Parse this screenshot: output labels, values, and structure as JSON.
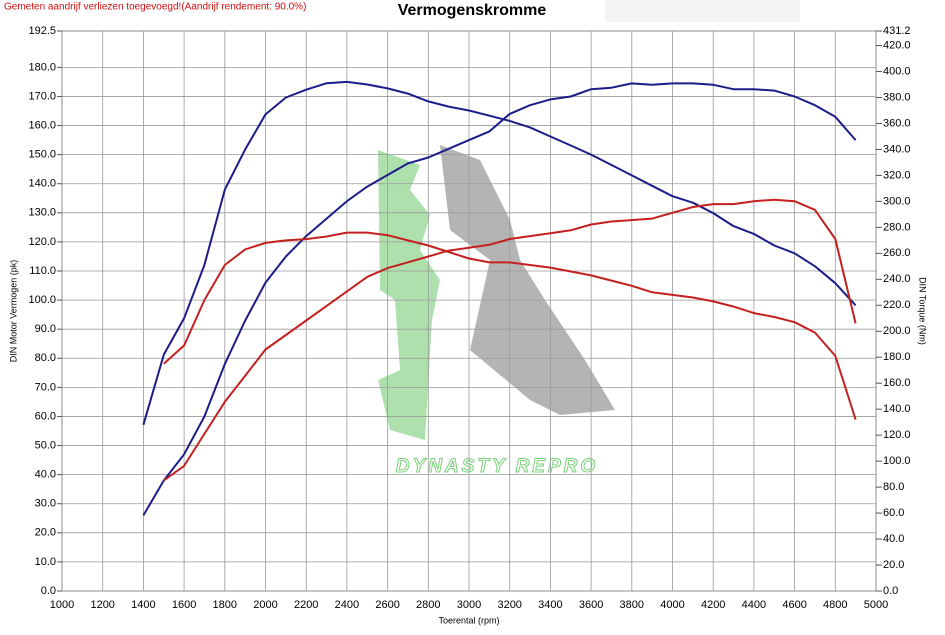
{
  "chart_data": {
    "type": "line",
    "title": "Vermogenskromme",
    "subtitle": "Gemeten aandrijf verliezen toegevoegd!(Aandrijf rendement: 90.0%)",
    "watermark": "DYNASTY REPRO",
    "x_label": "Toerental (rpm)",
    "y_label": "DIN Motor Vermogen (pk)",
    "y2_label": "DIN Torque (Nm)",
    "grid": true,
    "x": [
      1400,
      1500,
      1600,
      1700,
      1800,
      1900,
      2000,
      2100,
      2200,
      2300,
      2400,
      2500,
      2600,
      2700,
      2800,
      2900,
      3000,
      3100,
      3200,
      3300,
      3400,
      3500,
      3600,
      3700,
      3800,
      3900,
      4000,
      4100,
      4200,
      4300,
      4400,
      4500,
      4600,
      4700,
      4800,
      4900
    ],
    "series": [
      {
        "color": "#1c1c8a",
        "axis": "y",
        "values": [
          26,
          38,
          47,
          60,
          78,
          93,
          106,
          115,
          122,
          128,
          134,
          139,
          143,
          147,
          149,
          152,
          155,
          158,
          164,
          167,
          169,
          170,
          172.5,
          173,
          174.5,
          174,
          174.5,
          174.5,
          174,
          172.5,
          172.5,
          172,
          170,
          167,
          163,
          155
        ]
      },
      {
        "color": "#1c1c8a",
        "axis": "y2",
        "values": [
          128,
          182,
          210,
          251,
          309,
          340,
          367,
          380,
          386,
          391,
          392,
          390,
          387,
          383,
          377,
          373,
          370,
          366,
          362,
          357,
          350,
          343,
          336,
          328,
          320,
          312,
          304,
          299,
          291,
          281,
          275,
          266,
          260,
          250,
          237,
          220
        ]
      },
      {
        "color": "#c42020",
        "axis": "y",
        "values": [
          null,
          38,
          43,
          54,
          65,
          74,
          83,
          88,
          93,
          98,
          103,
          108,
          111,
          113,
          115,
          117,
          118,
          119,
          121,
          122,
          123,
          124,
          126,
          127,
          127.5,
          128,
          130,
          132,
          133,
          133,
          134,
          134.5,
          134,
          131,
          121,
          92
        ]
      },
      {
        "color": "#c42020",
        "axis": "y2",
        "values": [
          null,
          175,
          189,
          224,
          251,
          263,
          268,
          270,
          271,
          273,
          276,
          276,
          274,
          270,
          266,
          261,
          256,
          253,
          253,
          251,
          249,
          246,
          243,
          239,
          235,
          230,
          228,
          226,
          223,
          219,
          214,
          211,
          207,
          199,
          181,
          132
        ]
      }
    ],
    "xlim": [
      1000,
      5000
    ],
    "xticks": [
      1000,
      1200,
      1400,
      1600,
      1800,
      2000,
      2200,
      2400,
      2600,
      2800,
      3000,
      3200,
      3400,
      3600,
      3800,
      4000,
      4200,
      4400,
      4600,
      4800,
      5000
    ],
    "ylim": [
      0,
      192.5
    ],
    "yticks": [
      {
        "value": 0,
        "label": "0.0"
      },
      {
        "value": 10,
        "label": "10.0"
      },
      {
        "value": 20,
        "label": "20.0"
      },
      {
        "value": 30,
        "label": "30.0"
      },
      {
        "value": 40,
        "label": "40.0"
      },
      {
        "value": 50,
        "label": "50.0"
      },
      {
        "value": 60,
        "label": "60.0"
      },
      {
        "value": 70,
        "label": "70.0"
      },
      {
        "value": 80,
        "label": "80.0"
      },
      {
        "value": 90,
        "label": "90.0"
      },
      {
        "value": 100,
        "label": "100.0"
      },
      {
        "value": 110,
        "label": "110.0"
      },
      {
        "value": 120,
        "label": "120.0"
      },
      {
        "value": 130,
        "label": "130.0"
      },
      {
        "value": 140,
        "label": "140.0"
      },
      {
        "value": 150,
        "label": "150.0"
      },
      {
        "value": 160,
        "label": "160.0"
      },
      {
        "value": 170,
        "label": "170.0"
      },
      {
        "value": 180,
        "label": "180.0"
      },
      {
        "value": 192.5,
        "label": "192.5"
      }
    ],
    "y2lim": [
      0,
      431.2
    ],
    "y2ticks": [
      {
        "value": 0,
        "label": "0.0"
      },
      {
        "value": 20,
        "label": "20.0"
      },
      {
        "value": 40,
        "label": "40.0"
      },
      {
        "value": 60,
        "label": "60.0"
      },
      {
        "value": 80,
        "label": "80.0"
      },
      {
        "value": 100,
        "label": "100.0"
      },
      {
        "value": 120,
        "label": "120.0"
      },
      {
        "value": 140,
        "label": "140.0"
      },
      {
        "value": 160,
        "label": "160.0"
      },
      {
        "value": 180,
        "label": "180.0"
      },
      {
        "value": 200,
        "label": "200.0"
      },
      {
        "value": 220,
        "label": "220.0"
      },
      {
        "value": 240,
        "label": "240.0"
      },
      {
        "value": 260,
        "label": "260.0"
      },
      {
        "value": 280,
        "label": "280.0"
      },
      {
        "value": 300,
        "label": "300.0"
      },
      {
        "value": 320,
        "label": "320.0"
      },
      {
        "value": 340,
        "label": "340.0"
      },
      {
        "value": 360,
        "label": "360.0"
      },
      {
        "value": 380,
        "label": "380.0"
      },
      {
        "value": 400,
        "label": "400.0"
      },
      {
        "value": 420,
        "label": "420.0"
      },
      {
        "value": 431.2,
        "label": "431.2"
      }
    ]
  }
}
